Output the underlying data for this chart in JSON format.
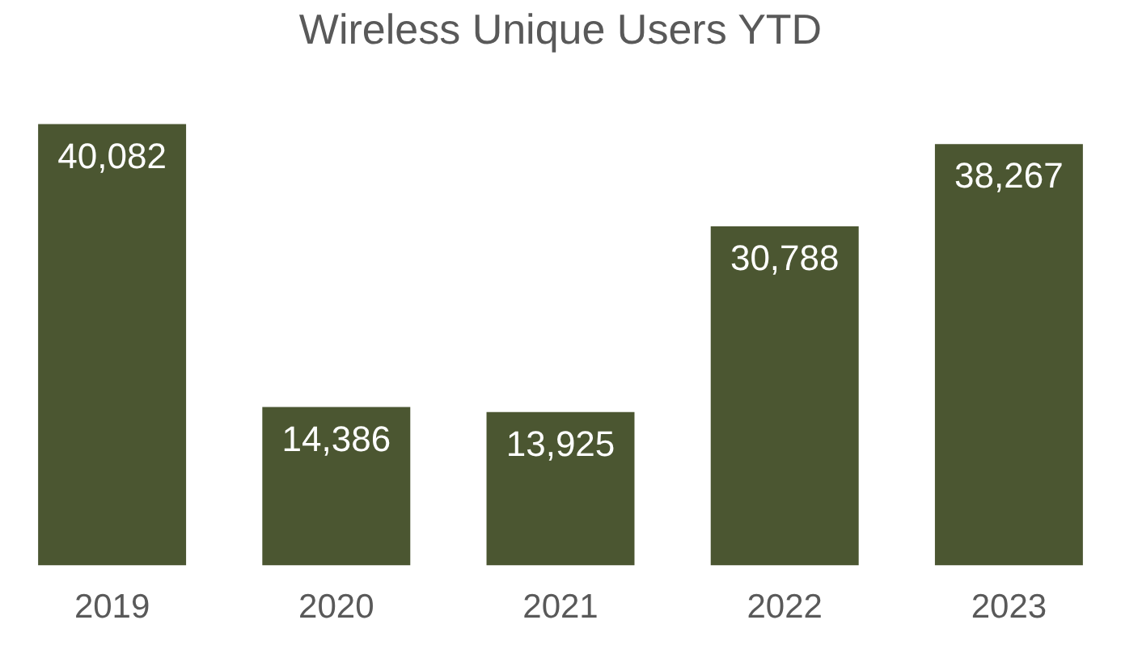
{
  "chart_data": {
    "type": "bar",
    "title": "Wireless Unique Users YTD",
    "categories": [
      "2019",
      "2020",
      "2021",
      "2022",
      "2023"
    ],
    "values": [
      40082,
      14386,
      13925,
      30788,
      38267
    ],
    "value_labels": [
      "40,082",
      "14,386",
      "13,925",
      "30,788",
      "38,267"
    ],
    "color": "#4b5631",
    "grid": false,
    "legend": false
  }
}
